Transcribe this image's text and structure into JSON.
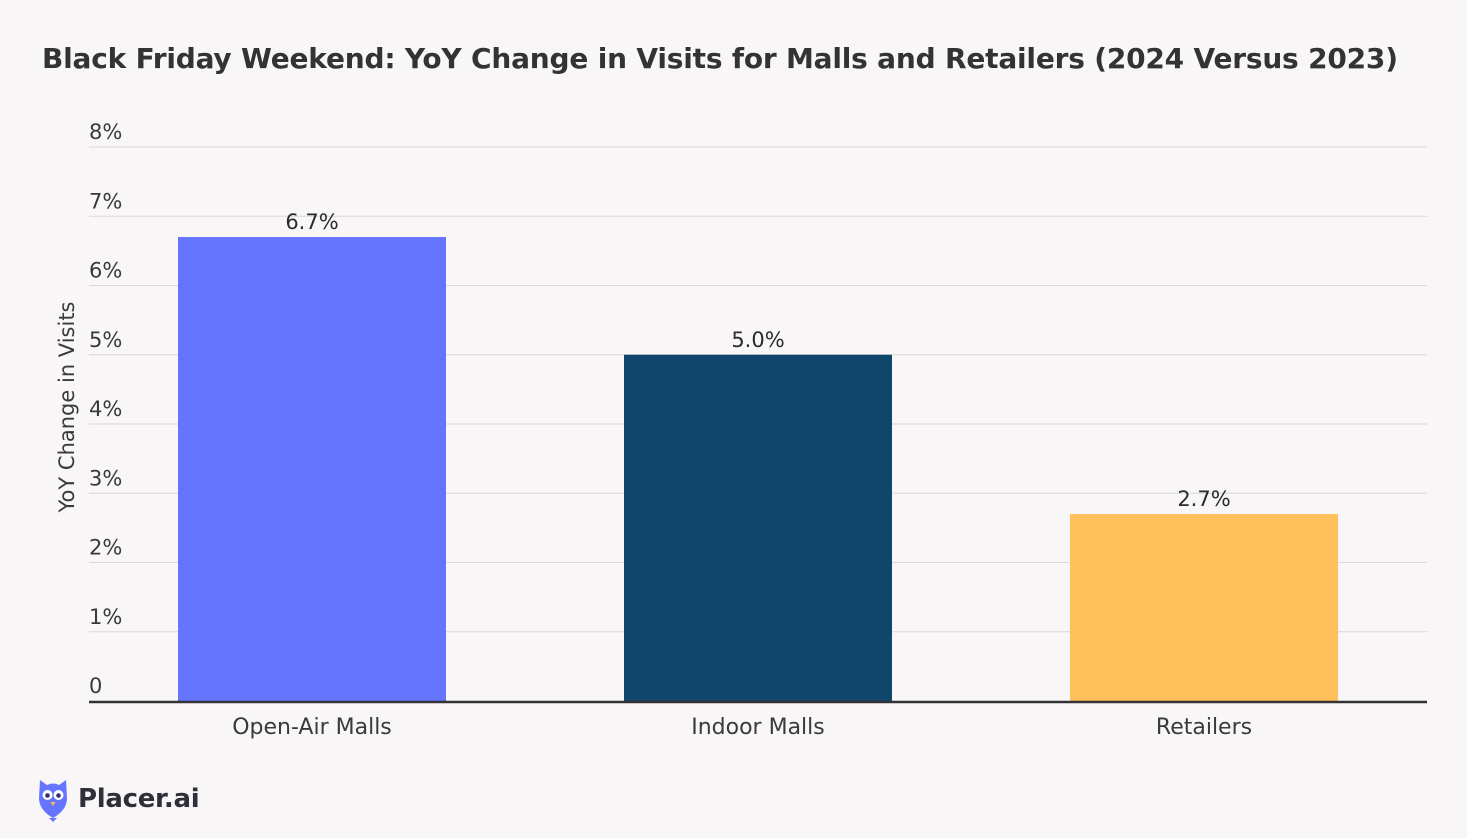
{
  "chart_data": {
    "type": "bar",
    "title": "Black Friday Weekend: YoY Change in Visits for Malls and Retailers (2024 Versus 2023)",
    "xlabel": "",
    "ylabel": "YoY Change in Visits",
    "ylim": [
      0,
      8
    ],
    "y_ticks": [
      0,
      1,
      2,
      3,
      4,
      5,
      6,
      7,
      8
    ],
    "y_tick_labels": [
      "0",
      "1%",
      "2%",
      "3%",
      "4%",
      "5%",
      "6%",
      "7%",
      "8%"
    ],
    "categories": [
      "Open-Air Malls",
      "Indoor Malls",
      "Retailers"
    ],
    "values": [
      6.7,
      5.0,
      2.7
    ],
    "data_labels": [
      "6.7%",
      "5.0%",
      "2.7%"
    ],
    "colors": [
      "#6675ff",
      "#11466c",
      "#ffbf5a"
    ],
    "grid": true,
    "legend": "none"
  },
  "brand": {
    "name": "Placer.ai",
    "icon": "owl-logo-icon",
    "color": "#6675ff"
  }
}
